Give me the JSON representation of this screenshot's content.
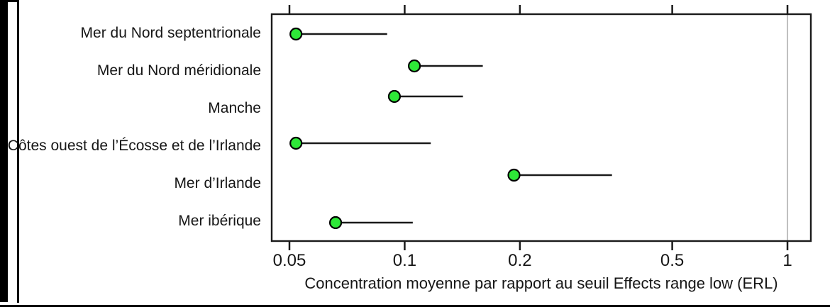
{
  "chart_data": {
    "type": "scatter",
    "subtype": "dot-plot-with-upper-range",
    "title": "",
    "xlabel": "Concentration moyenne par rapport au seuil Effects range low (ERL)",
    "ylabel": "",
    "x_scale": "log",
    "x_tick_labels": [
      "0.05",
      "0.1",
      "0.2",
      "0.5",
      "1"
    ],
    "x_tick_values": [
      0.05,
      0.1,
      0.2,
      0.5,
      1
    ],
    "x_range": [
      0.045,
      1.15
    ],
    "categories": [
      "Mer du Nord septentrionale",
      "Mer du Nord méridionale",
      "Manche",
      "Côtes ouest de l’Écosse et de l’Irlande",
      "Mer d’Irlande",
      "Mer ibérique"
    ],
    "series": [
      {
        "name": "concentration_moyenne",
        "values": [
          0.052,
          0.106,
          0.094,
          0.052,
          0.193,
          0.066
        ]
      },
      {
        "name": "borne_superieure",
        "values": [
          0.09,
          0.16,
          0.142,
          0.117,
          0.348,
          0.105
        ]
      }
    ],
    "reference_line": {
      "value": 1,
      "color": "#bfbfbf"
    },
    "marker": {
      "shape": "circle",
      "fill": "#2ee838",
      "stroke": "#000000"
    },
    "line_color": "#1a1a1a",
    "grid": "off",
    "legend": "none"
  }
}
